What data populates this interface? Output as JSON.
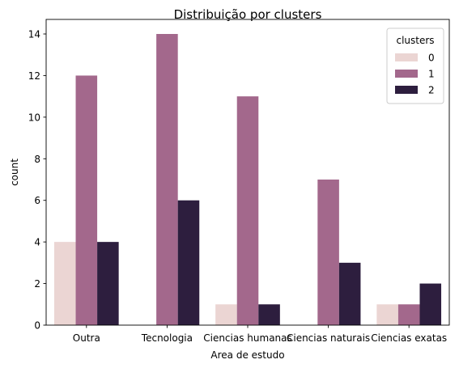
{
  "chart_data": {
    "type": "bar",
    "title": "Distribuição por clusters",
    "xlabel": "Area de estudo",
    "ylabel": "count",
    "categories": [
      "Outra",
      "Tecnologia",
      "Ciencias humanas",
      "Ciencias naturais",
      "Ciencias exatas"
    ],
    "series": [
      {
        "name": "0",
        "color": "#ebd5d3",
        "values": [
          4,
          0,
          1,
          0,
          1
        ]
      },
      {
        "name": "1",
        "color": "#a3688c",
        "values": [
          12,
          14,
          11,
          7,
          1
        ]
      },
      {
        "name": "2",
        "color": "#2d1e3e",
        "values": [
          4,
          6,
          1,
          3,
          2
        ]
      }
    ],
    "ylim": [
      0,
      14.7
    ],
    "yticks": [
      0,
      2,
      4,
      6,
      8,
      10,
      12,
      14
    ],
    "legend": {
      "title": "clusters",
      "placement": "top-right"
    },
    "grid": false
  }
}
